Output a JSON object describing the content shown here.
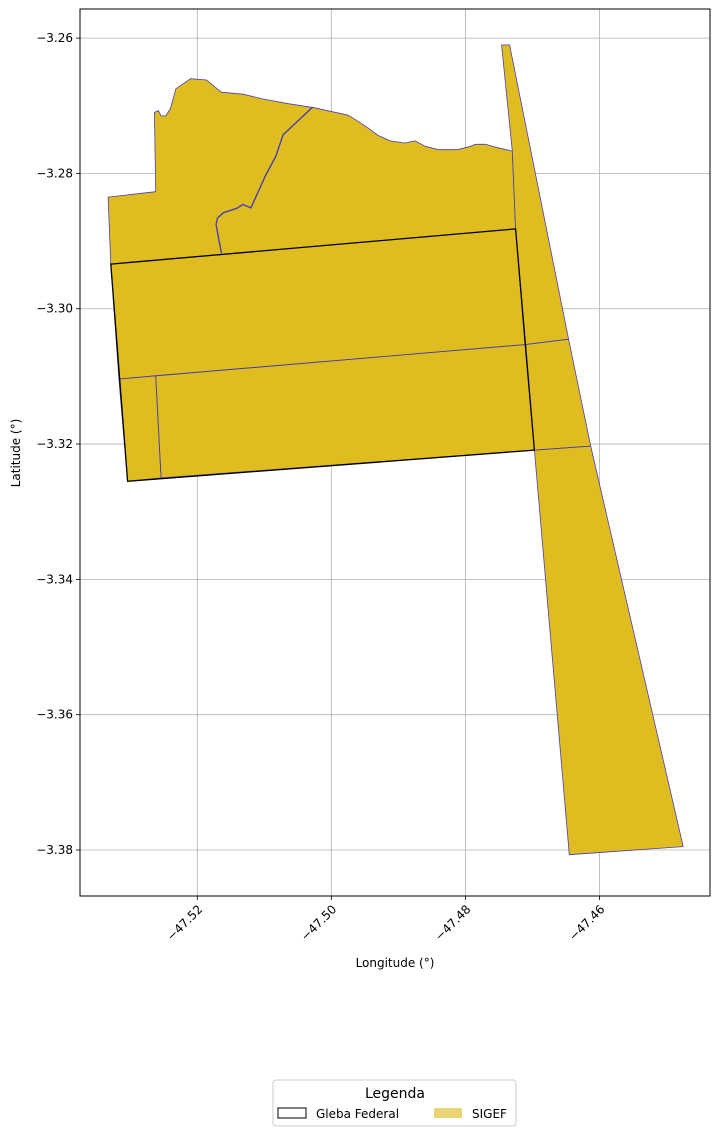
{
  "chart_data": {
    "type": "map",
    "xlabel": "Longitude (°)",
    "ylabel": "Latitude (°)",
    "xlim": [
      -47.5375,
      -47.4435
    ],
    "ylim": [
      -3.3868,
      -3.2557
    ],
    "grid": true,
    "x_ticks": [
      -47.52,
      -47.5,
      -47.48,
      -47.46
    ],
    "y_ticks": [
      -3.26,
      -3.28,
      -3.3,
      -3.32,
      -3.34,
      -3.36,
      -3.38
    ],
    "x_tick_labels": [
      "−47.52",
      "−47.50",
      "−47.48",
      "−47.46"
    ],
    "y_tick_labels": [
      "−3.26",
      "−3.28",
      "−3.30",
      "−3.32",
      "−3.34",
      "−3.36",
      "−3.38"
    ],
    "colors": {
      "sigef_fill": "#dfbc20",
      "sigef_edge": "#4a3fb0",
      "gleba_edge": "#000000",
      "legend_sigef_patch": "#e9d473",
      "grid": "#b0b0b0"
    },
    "layers": [
      {
        "name": "SIGEF",
        "type": "filled-polygons",
        "polygons": [
          {
            "name": "northwest-parcel",
            "coords": [
              [
                -47.5333,
                -3.2835
              ],
              [
                -47.5262,
                -3.2827
              ],
              [
                -47.5264,
                -3.271
              ],
              [
                -47.5258,
                -3.2707
              ],
              [
                -47.5254,
                -3.2715
              ],
              [
                -47.5247,
                -3.2715
              ],
              [
                -47.524,
                -3.2704
              ],
              [
                -47.5232,
                -3.2675
              ],
              [
                -47.521,
                -3.266
              ],
              [
                -47.5186,
                -3.2662
              ],
              [
                -47.5174,
                -3.2672
              ],
              [
                -47.5164,
                -3.268
              ],
              [
                -47.5132,
                -3.2683
              ],
              [
                -47.5102,
                -3.269
              ],
              [
                -47.5064,
                -3.2697
              ],
              [
                -47.5025,
                -3.2703
              ],
              [
                -47.4975,
                -3.2714
              ],
              [
                -47.496,
                -3.2723
              ],
              [
                -47.4945,
                -3.2733
              ],
              [
                -47.493,
                -3.2744
              ],
              [
                -47.4912,
                -3.2752
              ],
              [
                -47.489,
                -3.2755
              ],
              [
                -47.4875,
                -3.2752
              ],
              [
                -47.486,
                -3.276
              ],
              [
                -47.484,
                -3.2765
              ],
              [
                -47.4812,
                -3.2765
              ],
              [
                -47.4792,
                -3.276
              ],
              [
                -47.4785,
                -3.2757
              ],
              [
                -47.477,
                -3.2757
              ],
              [
                -47.4752,
                -3.2762
              ],
              [
                -47.473,
                -3.2767
              ],
              [
                -47.4725,
                -3.2882
              ],
              [
                -47.5329,
                -3.2934
              ]
            ]
          },
          {
            "name": "central-block",
            "coords": [
              [
                -47.5329,
                -3.2934
              ],
              [
                -47.4725,
                -3.2882
              ],
              [
                -47.4711,
                -3.3053
              ],
              [
                -47.5317,
                -3.3104
              ]
            ]
          },
          {
            "name": "southwest-strip",
            "coords": [
              [
                -47.5317,
                -3.3104
              ],
              [
                -47.5262,
                -3.3099
              ],
              [
                -47.5254,
                -3.325
              ],
              [
                -47.5304,
                -3.3255
              ]
            ]
          },
          {
            "name": "south-block",
            "coords": [
              [
                -47.5262,
                -3.3099
              ],
              [
                -47.4711,
                -3.3053
              ],
              [
                -47.4697,
                -3.3209
              ],
              [
                -47.5254,
                -3.325
              ]
            ]
          },
          {
            "name": "east-strip-north",
            "coords": [
              [
                -47.4746,
                -3.261
              ],
              [
                -47.4734,
                -3.261
              ],
              [
                -47.4646,
                -3.3045
              ],
              [
                -47.4711,
                -3.3053
              ],
              [
                -47.4725,
                -3.2882
              ],
              [
                -47.473,
                -3.2767
              ]
            ]
          },
          {
            "name": "east-strip-middle",
            "coords": [
              [
                -47.4711,
                -3.3053
              ],
              [
                -47.4646,
                -3.3045
              ],
              [
                -47.4613,
                -3.3203
              ],
              [
                -47.4697,
                -3.3209
              ]
            ]
          },
          {
            "name": "east-strip-south",
            "coords": [
              [
                -47.4697,
                -3.3209
              ],
              [
                -47.4613,
                -3.3203
              ],
              [
                -47.4475,
                -3.3795
              ],
              [
                -47.4645,
                -3.3807
              ]
            ]
          }
        ]
      },
      {
        "name": "Gleba Federal",
        "type": "outline-polygon",
        "coords": [
          [
            -47.5329,
            -3.2934
          ],
          [
            -47.4725,
            -3.2882
          ],
          [
            -47.4697,
            -3.3209
          ],
          [
            -47.5304,
            -3.3255
          ]
        ]
      }
    ],
    "interior_lines": [
      {
        "name": "river-channel",
        "coords": [
          [
            -47.5164,
            -3.2918
          ],
          [
            -47.5167,
            -3.2902
          ],
          [
            -47.5172,
            -3.2876
          ],
          [
            -47.517,
            -3.2866
          ],
          [
            -47.5161,
            -3.2858
          ],
          [
            -47.5142,
            -3.2852
          ],
          [
            -47.5132,
            -3.2846
          ],
          [
            -47.512,
            -3.2851
          ],
          [
            -47.5098,
            -3.2803
          ],
          [
            -47.5083,
            -3.2775
          ],
          [
            -47.5072,
            -3.2743
          ],
          [
            -47.5028,
            -3.2702
          ]
        ]
      },
      {
        "name": "central-division",
        "coords": [
          [
            -47.5317,
            -3.3104
          ],
          [
            -47.4711,
            -3.3053
          ]
        ]
      },
      {
        "name": "southwest-division",
        "coords": [
          [
            -47.5262,
            -3.3099
          ],
          [
            -47.5254,
            -3.325
          ]
        ]
      },
      {
        "name": "east-division-upper",
        "coords": [
          [
            -47.4711,
            -3.3053
          ],
          [
            -47.4646,
            -3.3045
          ]
        ]
      },
      {
        "name": "east-division-lower",
        "coords": [
          [
            -47.4697,
            -3.3209
          ],
          [
            -47.4613,
            -3.3203
          ]
        ]
      }
    ]
  },
  "legend": {
    "title": "Legenda",
    "entries": [
      {
        "label": "Gleba Federal",
        "style": "outline"
      },
      {
        "label": "SIGEF",
        "style": "fill"
      }
    ]
  }
}
